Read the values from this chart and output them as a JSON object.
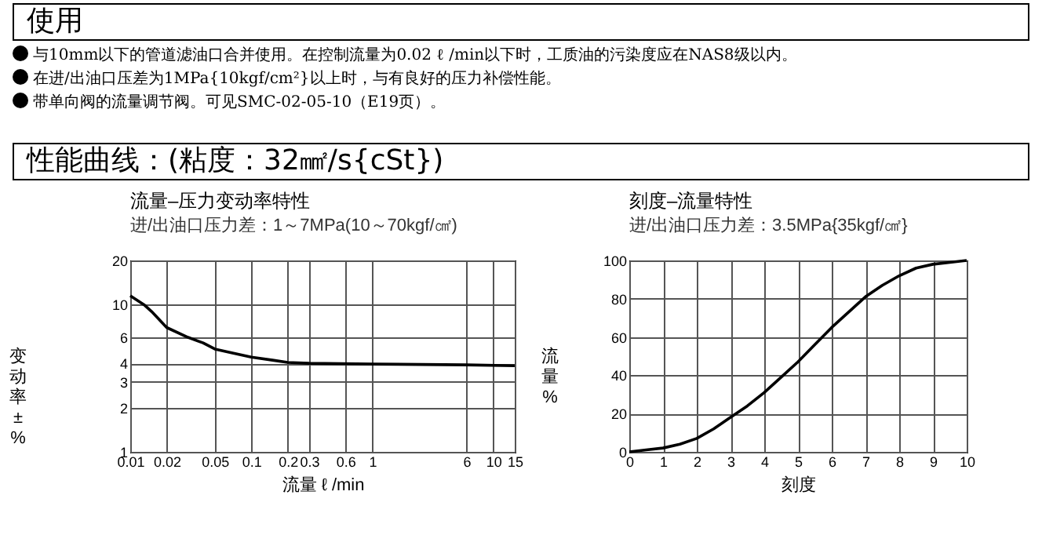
{
  "chart_data": [
    {
      "type": "other",
      "title": "使用",
      "annotations": [
        "与10mm以下的管道滤油口合并使用。在控制流量为0.02 ℓ /min以下时，工质油的污染度应在NAS8级以内。",
        "在进/出油口压差为1MPa{10kgf/cm²}以上时，与有良好的压力补偿性能。",
        "带单向阀的流量调节阀。可见SMC-02-05-10（E19页）。"
      ]
    },
    {
      "type": "other",
      "title": "性能曲线：(粘度：32㎟/s{cSt})"
    },
    {
      "type": "line",
      "title": "流量–压力变动率特性",
      "subtitle": "进/出油口压力差：1～7MPa(10～70kgf/㎠)",
      "xlabel": "流量 ℓ /min",
      "ylabel": "变动率±%",
      "log": "xy",
      "grid": true,
      "color": "#000000",
      "x": [
        0.01,
        0.013,
        0.015,
        0.02,
        0.03,
        0.04,
        0.05,
        0.07,
        0.1,
        0.15,
        0.2,
        0.3,
        1,
        6,
        15
      ],
      "values": [
        11.5,
        10,
        9,
        7,
        6,
        5.5,
        5,
        4.7,
        4.4,
        4.2,
        4.05,
        4,
        3.95,
        3.9,
        3.85
      ],
      "xlim": [
        0.01,
        15
      ],
      "xticks": [
        0.01,
        0.02,
        0.05,
        0.1,
        0.2,
        0.3,
        0.6,
        1,
        6,
        10,
        15
      ],
      "ylim": [
        1,
        20
      ],
      "yticks": [
        1,
        2,
        3,
        4,
        6,
        10,
        20
      ]
    },
    {
      "type": "line",
      "title": "刻度–流量特性",
      "subtitle": "进/出油口压力差：3.5MPa{35kgf/㎠}",
      "xlabel": "刻度",
      "ylabel": "流量%",
      "grid": true,
      "color": "#000000",
      "x": [
        0,
        0.5,
        1,
        1.5,
        2,
        2.5,
        3,
        3.5,
        4,
        4.5,
        5,
        5.5,
        6,
        6.5,
        7,
        7.5,
        8,
        8.5,
        9,
        9.5,
        10
      ],
      "values": [
        0,
        1,
        2,
        4,
        7,
        12,
        18,
        24,
        31,
        39,
        47,
        56,
        65,
        73,
        81,
        87,
        92,
        96,
        98,
        99,
        100
      ],
      "xlim": [
        0,
        10
      ],
      "xticks": [
        0,
        1,
        2,
        3,
        4,
        5,
        6,
        7,
        8,
        9,
        10
      ],
      "ylim": [
        0,
        100
      ],
      "yticks": [
        0,
        20,
        40,
        60,
        80,
        100
      ]
    }
  ]
}
